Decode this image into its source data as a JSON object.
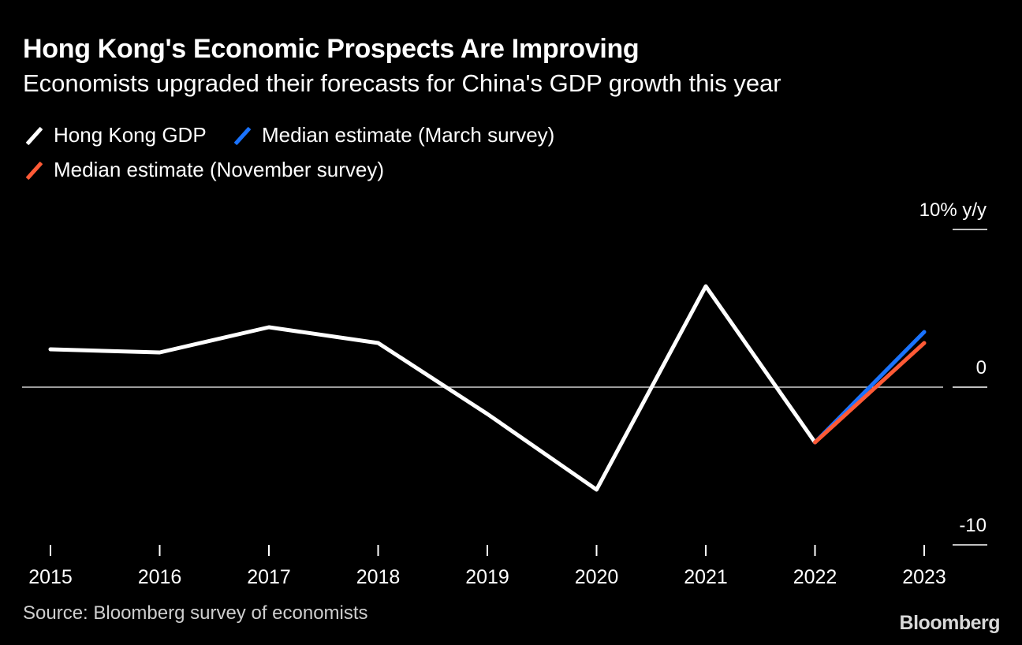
{
  "title": "Hong Kong's Economic Prospects Are Improving",
  "subtitle": "Economists upgraded their forecasts for China's GDP growth this year",
  "legend": [
    {
      "label": "Hong Kong GDP",
      "color": "#ffffff"
    },
    {
      "label": "Median estimate (March survey)",
      "color": "#1a73ff"
    },
    {
      "label": "Median estimate (November survey)",
      "color": "#ff5a36"
    }
  ],
  "source": "Source: Bloomberg survey of economists",
  "brand": "Bloomberg",
  "chart_data": {
    "type": "line",
    "title": "Hong Kong's Economic Prospects Are Improving",
    "subtitle": "Economists upgraded their forecasts for China's GDP growth this year",
    "x": [
      "2015",
      "2016",
      "2017",
      "2018",
      "2019",
      "2020",
      "2021",
      "2022",
      "2023"
    ],
    "series": [
      {
        "name": "Hong Kong GDP",
        "color": "#ffffff",
        "x": [
          "2015",
          "2016",
          "2017",
          "2018",
          "2019",
          "2020",
          "2021",
          "2022"
        ],
        "values": [
          2.4,
          2.2,
          3.8,
          2.8,
          -1.7,
          -6.5,
          6.4,
          -3.5
        ]
      },
      {
        "name": "Median estimate (March survey)",
        "color": "#1a73ff",
        "x": [
          "2022",
          "2023"
        ],
        "values": [
          -3.5,
          3.5
        ]
      },
      {
        "name": "Median estimate (November survey)",
        "color": "#ff5a36",
        "x": [
          "2022",
          "2023"
        ],
        "values": [
          -3.5,
          2.8
        ]
      }
    ],
    "ylim": [
      -10,
      10
    ],
    "y_ticks": [
      {
        "value": 10,
        "label": "10% y/y"
      },
      {
        "value": 0,
        "label": "0"
      },
      {
        "value": -10,
        "label": "-10"
      }
    ],
    "grid": false,
    "zero_line": true,
    "legend_position": "top-left"
  }
}
